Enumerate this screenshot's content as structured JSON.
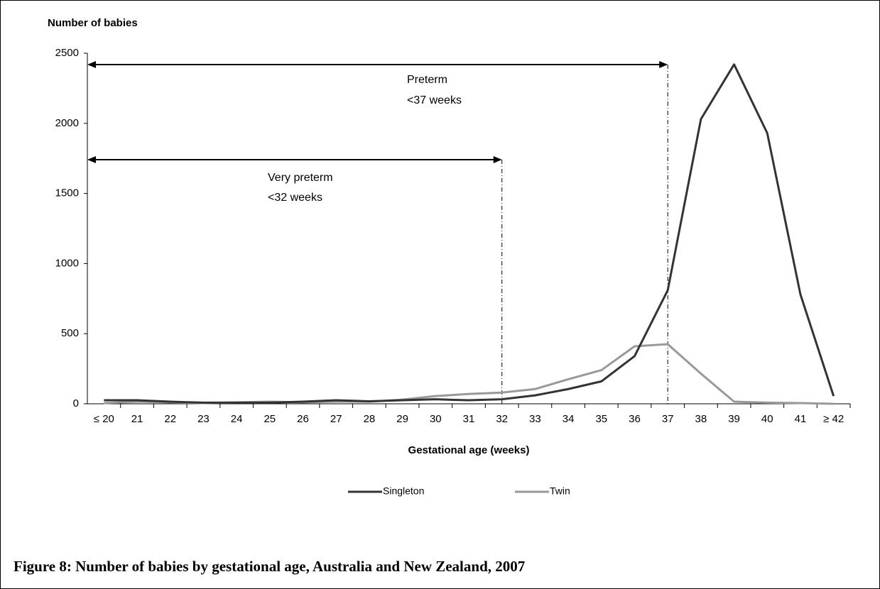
{
  "chart_data": {
    "type": "line",
    "title": "Figure 8: Number of babies by gestational age, Australia and New Zealand, 2007",
    "y_label": "Number of babies",
    "x_label": "Gestational age (weeks)",
    "categories": [
      "≤ 20",
      "21",
      "22",
      "23",
      "24",
      "25",
      "26",
      "27",
      "28",
      "29",
      "30",
      "31",
      "32",
      "33",
      "34",
      "35",
      "36",
      "37",
      "38",
      "39",
      "40",
      "41",
      "≥ 42"
    ],
    "series": [
      {
        "name": "Singleton",
        "color": "#333333",
        "values": [
          25,
          25,
          15,
          8,
          8,
          8,
          15,
          25,
          18,
          25,
          32,
          25,
          32,
          60,
          105,
          160,
          340,
          810,
          2030,
          2420,
          1930,
          780,
          55
        ]
      },
      {
        "name": "Twin",
        "color": "#999999",
        "values": [
          5,
          15,
          10,
          5,
          10,
          15,
          10,
          15,
          15,
          30,
          55,
          70,
          80,
          105,
          175,
          240,
          410,
          425,
          215,
          15,
          8,
          5,
          0
        ]
      }
    ],
    "ylim": [
      0,
      2500
    ],
    "yticks": [
      0,
      500,
      1000,
      1500,
      2000,
      2500
    ],
    "grid": false,
    "annotations": [
      {
        "lines": [
          "Preterm",
          "<37 weeks"
        ],
        "category": "37"
      },
      {
        "lines": [
          "Very preterm",
          "<32 weeks"
        ],
        "category": "32"
      }
    ]
  }
}
